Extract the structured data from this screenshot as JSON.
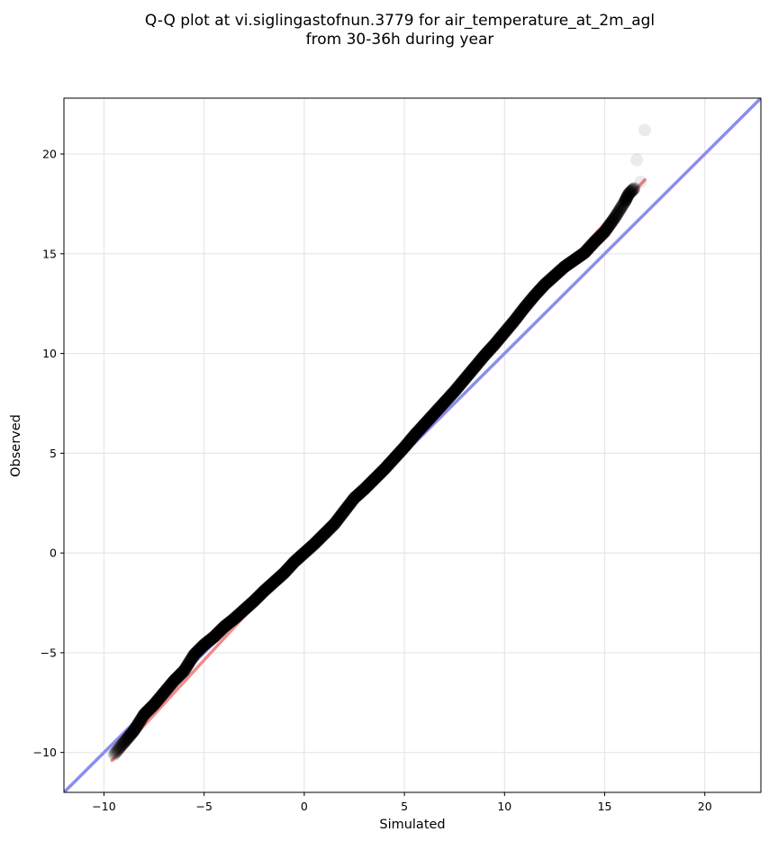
{
  "chart_data": {
    "type": "scatter",
    "title": "Q-Q plot at vi.siglingastofnun.3779 for air_temperature_at_2m_agl",
    "subtitle": "from 30-36h during year",
    "xlabel": "Simulated",
    "ylabel": "Observed",
    "xlim": [
      -12,
      22.8
    ],
    "ylim": [
      -12,
      22.8
    ],
    "x_ticks": [
      -10,
      -5,
      0,
      5,
      10,
      15,
      20
    ],
    "y_ticks": [
      -10,
      -5,
      0,
      5,
      10,
      15,
      20
    ],
    "x_tick_labels": [
      "−10",
      "−5",
      "0",
      "5",
      "10",
      "15",
      "20"
    ],
    "y_tick_labels": [
      "−10",
      "−5",
      "0",
      "5",
      "10",
      "15",
      "20"
    ],
    "grid": true,
    "reference_line": {
      "name": "1:1",
      "color": "#8c8cf0",
      "from": [
        -12,
        -12
      ],
      "to": [
        22.8,
        22.8
      ]
    },
    "fit_line": {
      "color": "#f08c8c",
      "from": [
        -9.6,
        -10.4
      ],
      "to": [
        17,
        18.7
      ]
    },
    "qq_curve": {
      "x": [
        -9.5,
        -9,
        -8.5,
        -8,
        -7.5,
        -7,
        -6.5,
        -6,
        -5.5,
        -5,
        -4.5,
        -4,
        -3.5,
        -3,
        -2.5,
        -2,
        -1.5,
        -1,
        -0.5,
        0,
        0.5,
        1,
        1.5,
        2,
        2.5,
        3,
        3.5,
        4,
        4.5,
        5,
        5.5,
        6,
        6.5,
        7,
        7.5,
        8,
        8.5,
        9,
        9.5,
        10,
        10.5,
        11,
        11.5,
        12,
        12.5,
        13,
        13.5,
        14,
        14.5,
        15,
        15.5,
        16,
        16.2,
        16.5
      ],
      "y": [
        -10.1,
        -9.5,
        -8.9,
        -8.1,
        -7.6,
        -7.0,
        -6.4,
        -5.9,
        -5.1,
        -4.6,
        -4.2,
        -3.7,
        -3.3,
        -2.85,
        -2.4,
        -1.9,
        -1.45,
        -1.0,
        -0.45,
        0.0,
        0.45,
        0.95,
        1.45,
        2.1,
        2.75,
        3.2,
        3.7,
        4.2,
        4.75,
        5.3,
        5.9,
        6.45,
        7.0,
        7.55,
        8.1,
        8.7,
        9.3,
        9.9,
        10.45,
        11.05,
        11.65,
        12.3,
        12.9,
        13.45,
        13.9,
        14.35,
        14.7,
        15.05,
        15.6,
        16.1,
        16.8,
        17.6,
        18.0,
        18.3
      ]
    },
    "tail_points": {
      "x": [
        16.8,
        16.6,
        17.0
      ],
      "y": [
        18.6,
        19.7,
        21.2
      ]
    },
    "colors": {
      "point": "#000000",
      "axes": "#000000",
      "grid": "#e6e6e6"
    }
  }
}
